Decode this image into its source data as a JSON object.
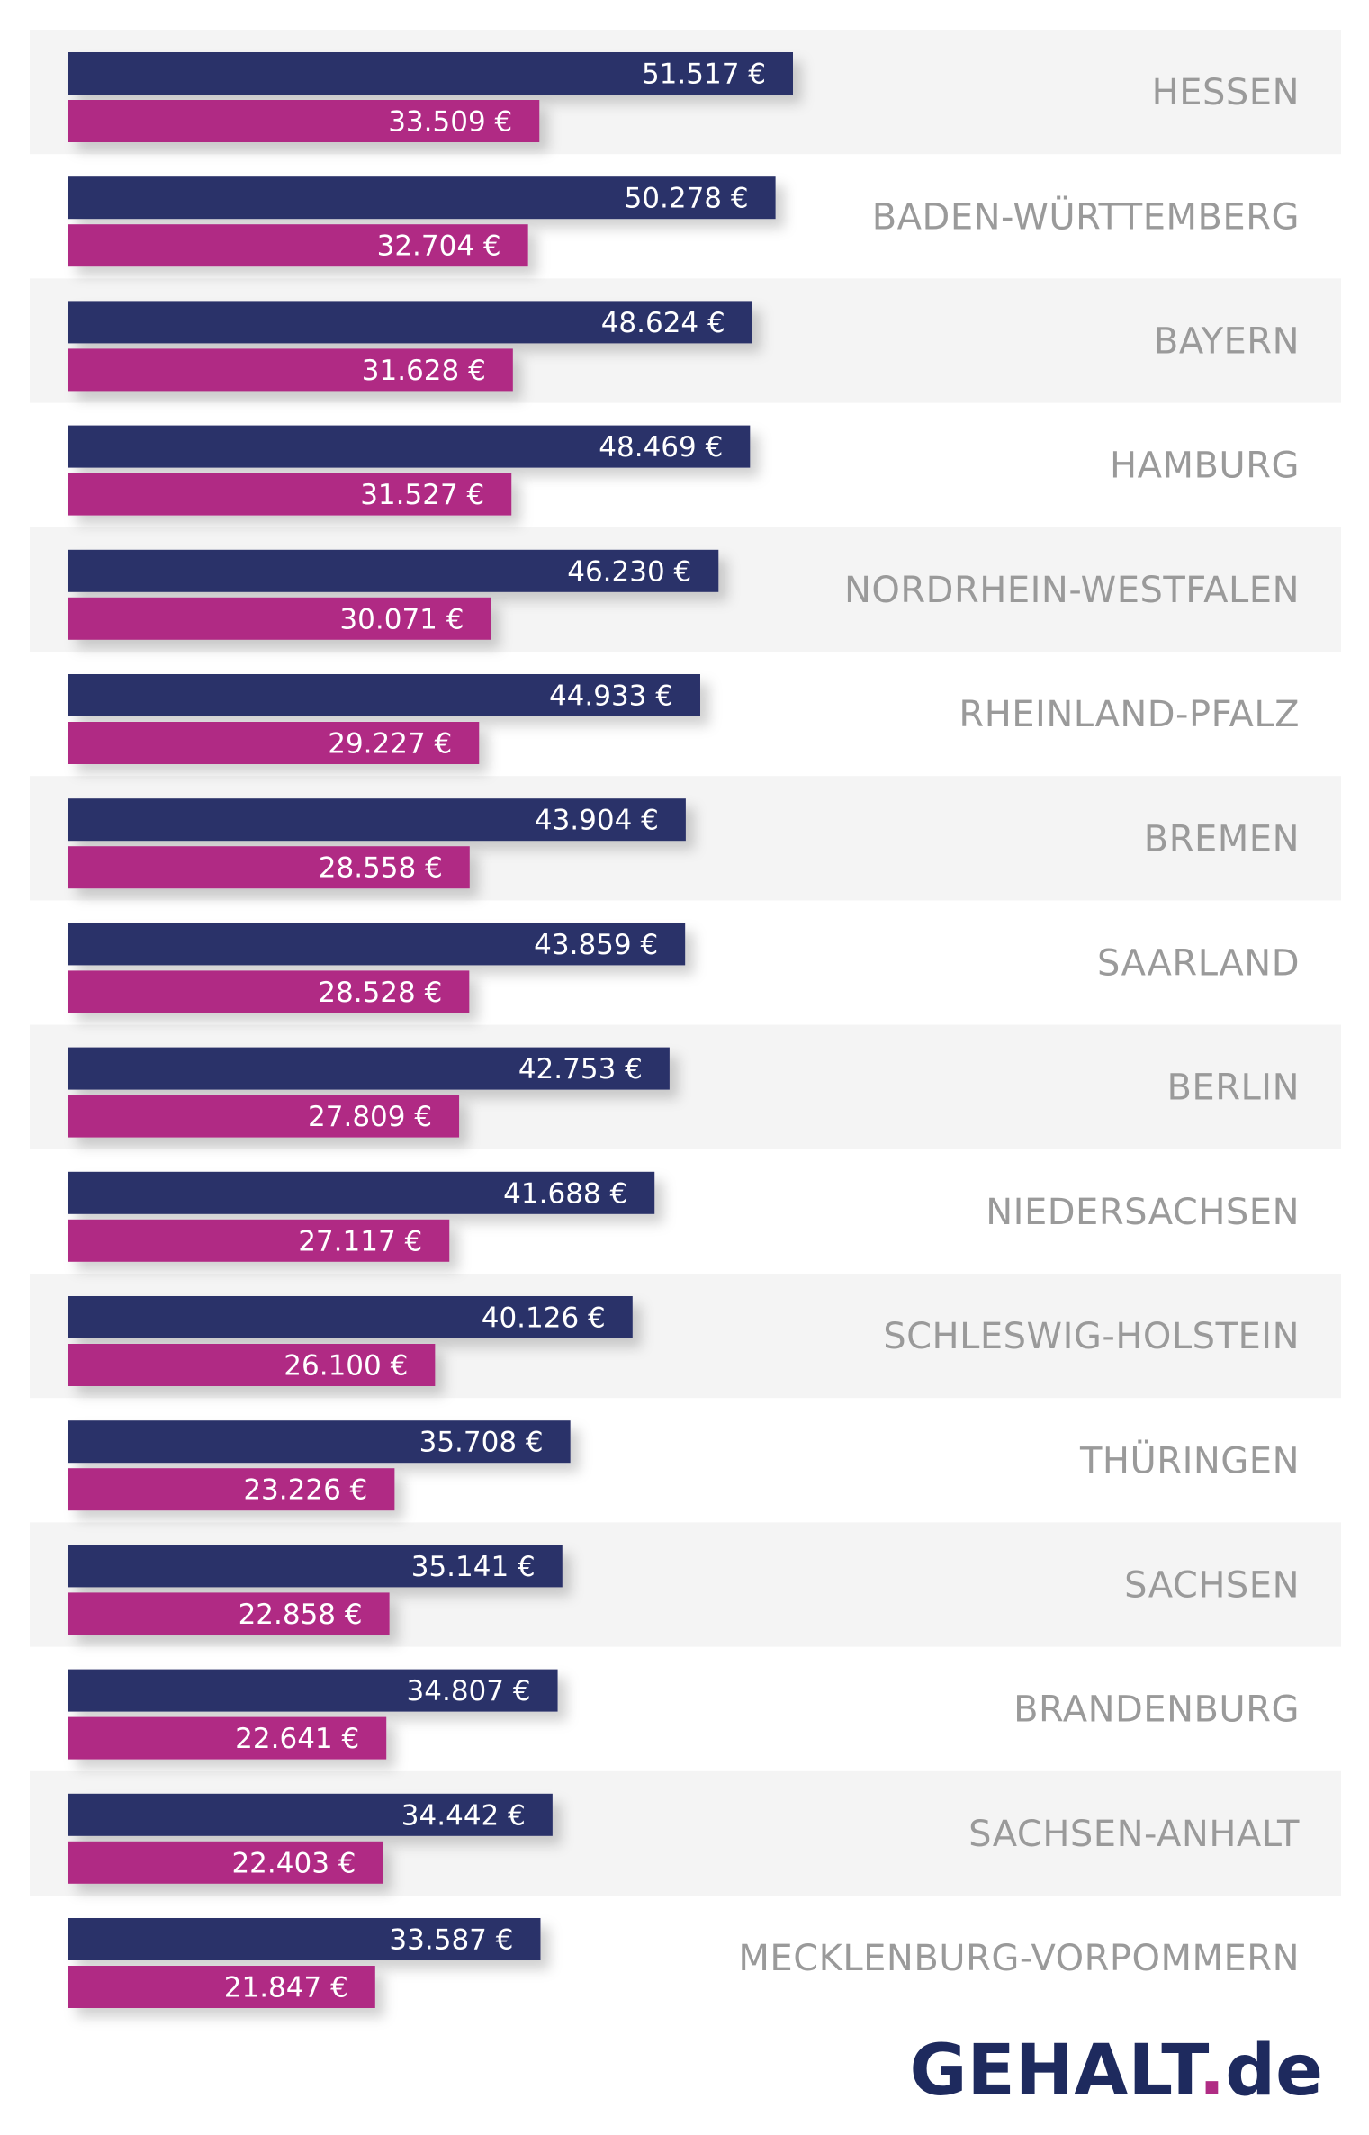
{
  "chart_data": {
    "type": "bar",
    "orientation": "horizontal",
    "unit": "€",
    "categories": [
      "HESSEN",
      "BADEN-WÜRTTEMBERG",
      "BAYERN",
      "HAMBURG",
      "NORDRHEIN-WESTFALEN",
      "RHEINLAND-PFALZ",
      "BREMEN",
      "SAARLAND",
      "BERLIN",
      "NIEDERSACHSEN",
      "SCHLESWIG-HOLSTEIN",
      "THÜRINGEN",
      "SACHSEN",
      "BRANDENBURG",
      "SACHSEN-ANHALT",
      "MECKLENBURG-VORPOMMERN"
    ],
    "series": [
      {
        "color": "#2b3069",
        "values": [
          51517,
          50278,
          48624,
          48469,
          46230,
          44933,
          43904,
          43859,
          42753,
          41688,
          40126,
          35708,
          35141,
          34807,
          34442,
          33587
        ],
        "labels": [
          "51.517 €",
          "50.278 €",
          "48.624 €",
          "48.469 €",
          "46.230 €",
          "44.933 €",
          "43.904 €",
          "43.859 €",
          "42.753 €",
          "41.688 €",
          "40.126 €",
          "35.708 €",
          "35.141 €",
          "34.807 €",
          "34.442 €",
          "33.587 €"
        ]
      },
      {
        "color": "#b02c84",
        "values": [
          33509,
          32704,
          31628,
          31527,
          30071,
          29227,
          28558,
          28528,
          27809,
          27117,
          26100,
          23226,
          22858,
          22641,
          22403,
          21847
        ],
        "labels": [
          "33.509 €",
          "32.704 €",
          "31.628 €",
          "31.527 €",
          "30.071 €",
          "29.227 €",
          "28.558 €",
          "28.528 €",
          "27.809 €",
          "27.117 €",
          "26.100 €",
          "23.226 €",
          "22.858 €",
          "22.641 €",
          "22.403 €",
          "21.847 €"
        ]
      }
    ],
    "xlim": [
      0,
      51517
    ],
    "grid": false,
    "legend": "none",
    "row_band_color": "#f4f4f4"
  },
  "logo": {
    "main": "GEHALT",
    "dot": ".",
    "suffix": "de"
  }
}
